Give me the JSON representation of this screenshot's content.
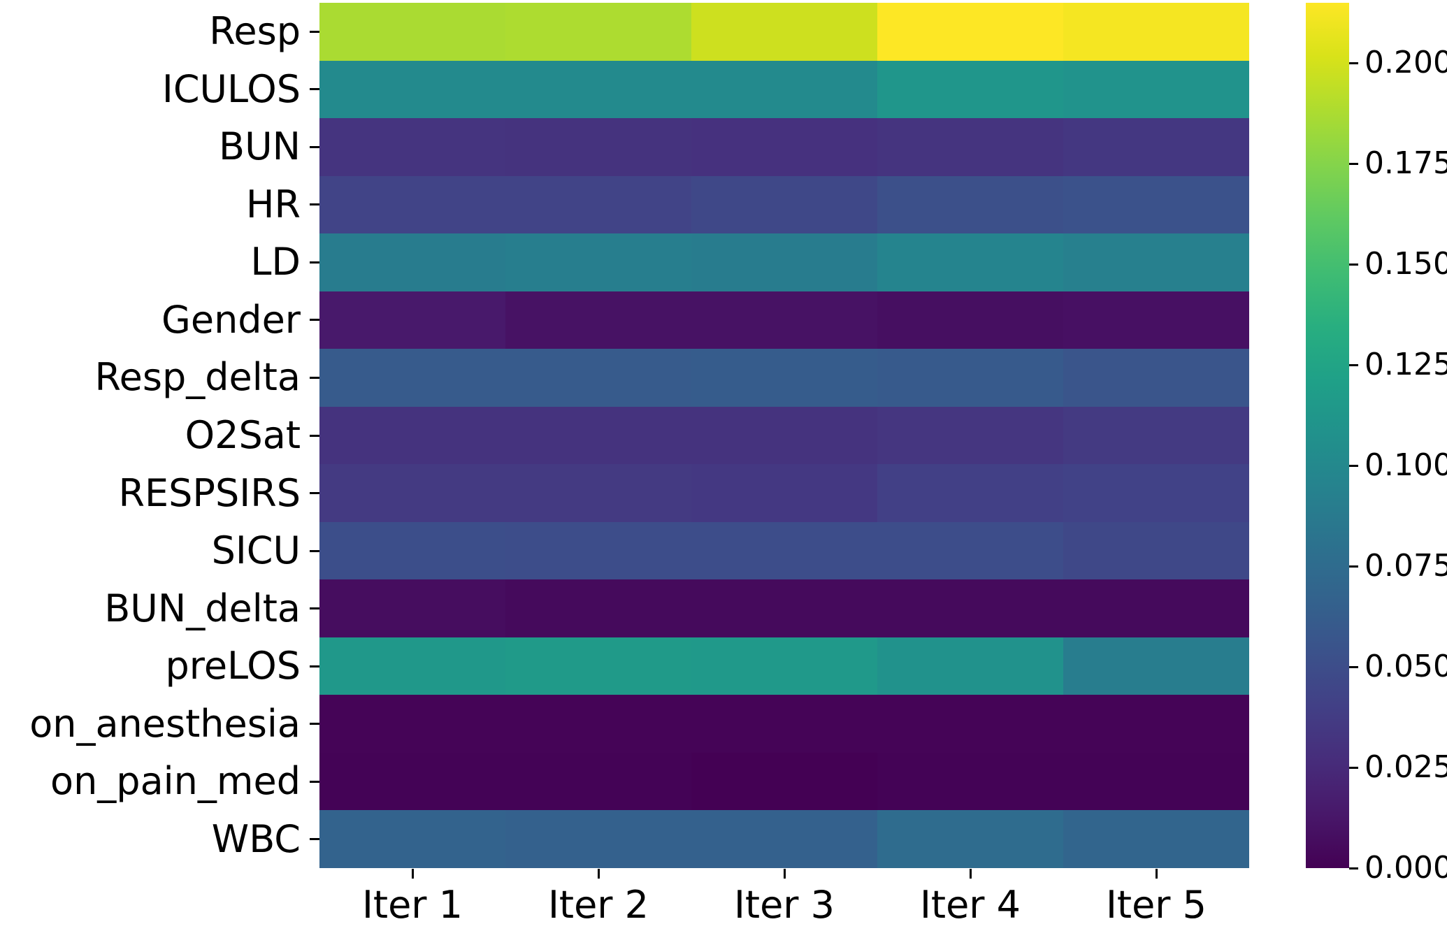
{
  "chart_data": {
    "type": "heatmap",
    "title": "",
    "xlabel": "",
    "ylabel": "",
    "grid": false,
    "legend_position": "colorbar-right",
    "colormap": "viridis",
    "vmin": 0.0,
    "vmax": 0.215,
    "x_tick_labels": [
      "Iter 1",
      "Iter 2",
      "Iter 3",
      "Iter 4",
      "Iter 5"
    ],
    "y_tick_labels": [
      "Resp",
      "ICULOS",
      "BUN",
      "HR",
      "LD",
      "Gender",
      "Resp_delta",
      "O2Sat",
      "RESPSIRS",
      "SICU",
      "BUN_delta",
      "preLOS",
      "on_anesthesia",
      "on_pain_med",
      "WBC"
    ],
    "values": [
      [
        0.187,
        0.188,
        0.198,
        0.215,
        0.212
      ],
      [
        0.101,
        0.101,
        0.101,
        0.112,
        0.109
      ],
      [
        0.032,
        0.031,
        0.03,
        0.032,
        0.034
      ],
      [
        0.043,
        0.043,
        0.046,
        0.052,
        0.054
      ],
      [
        0.089,
        0.091,
        0.089,
        0.096,
        0.092
      ],
      [
        0.014,
        0.01,
        0.01,
        0.008,
        0.009
      ],
      [
        0.061,
        0.061,
        0.062,
        0.06,
        0.056
      ],
      [
        0.031,
        0.031,
        0.031,
        0.033,
        0.036
      ],
      [
        0.036,
        0.036,
        0.035,
        0.04,
        0.042
      ],
      [
        0.051,
        0.05,
        0.05,
        0.05,
        0.046
      ],
      [
        0.007,
        0.005,
        0.005,
        0.005,
        0.005
      ],
      [
        0.114,
        0.116,
        0.115,
        0.108,
        0.09
      ],
      [
        0.002,
        0.002,
        0.002,
        0.002,
        0.002
      ],
      [
        0.001,
        0.001,
        0.0,
        0.001,
        0.001
      ],
      [
        0.067,
        0.066,
        0.066,
        0.075,
        0.069
      ]
    ],
    "colorbar_tick_labels": [
      "0.200",
      "0.175",
      "0.150",
      "0.125",
      "0.100",
      "0.075",
      "0.050",
      "0.025",
      "0.000"
    ],
    "colorbar_tick_values": [
      0.2,
      0.175,
      0.15,
      0.125,
      0.1,
      0.075,
      0.05,
      0.025,
      0.0
    ]
  },
  "colors": {
    "background": "#ffffff",
    "tick_color": "#000000",
    "label_color": "#000000",
    "viridis_stops": [
      [
        0.0,
        "#440154"
      ],
      [
        0.0625,
        "#48186a"
      ],
      [
        0.125,
        "#472d7b"
      ],
      [
        0.1875,
        "#424086"
      ],
      [
        0.25,
        "#3b528b"
      ],
      [
        0.3125,
        "#33638d"
      ],
      [
        0.375,
        "#2c728e"
      ],
      [
        0.4375,
        "#26828e"
      ],
      [
        0.5,
        "#21918c"
      ],
      [
        0.5625,
        "#1fa088"
      ],
      [
        0.625,
        "#28ae80"
      ],
      [
        0.6875,
        "#3fbc73"
      ],
      [
        0.75,
        "#5ec962"
      ],
      [
        0.8125,
        "#84d44b"
      ],
      [
        0.875,
        "#addc30"
      ],
      [
        0.9375,
        "#d8e219"
      ],
      [
        1.0,
        "#fde725"
      ]
    ]
  }
}
